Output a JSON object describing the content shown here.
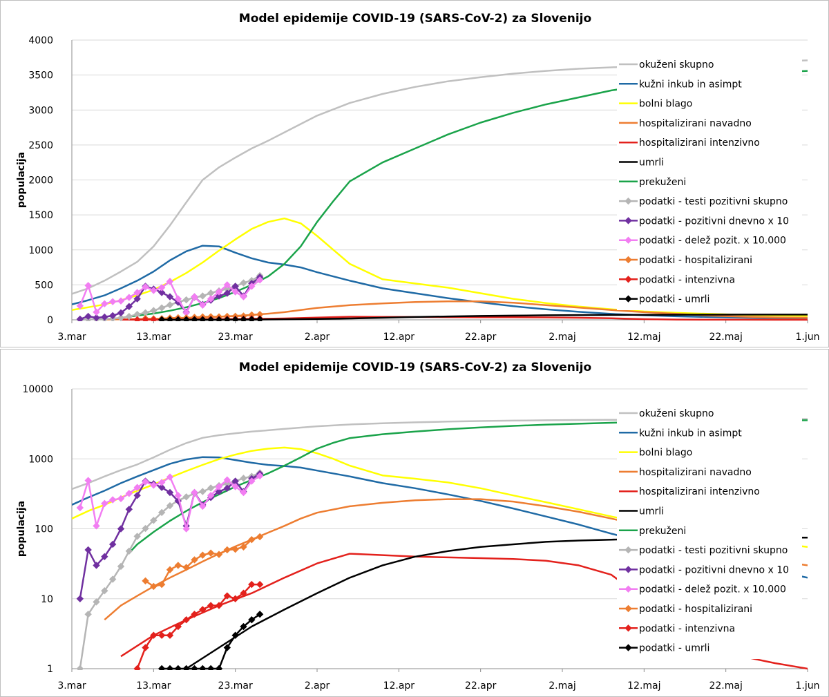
{
  "chart_data": [
    {
      "type": "line",
      "title": "Model epidemije COVID-19 (SARS-CoV-2) za Slovenijo",
      "ylabel": "populacija",
      "xlabel": "",
      "yscale": "linear",
      "ylim": [
        0,
        4000
      ],
      "yticks": [
        "0",
        "500",
        "1000",
        "1500",
        "2000",
        "2500",
        "3000",
        "3500",
        "4000"
      ],
      "ytick_values": [
        0,
        500,
        1000,
        1500,
        2000,
        2500,
        3000,
        3500,
        4000
      ],
      "xlim": [
        0,
        90
      ],
      "xticks": [
        "3.mar",
        "13.mar",
        "23.mar",
        "2.apr",
        "12.apr",
        "22.apr",
        "2.maj",
        "12.maj",
        "22.maj",
        "1.jun"
      ],
      "xtick_days": [
        0,
        10,
        20,
        30,
        40,
        50,
        60,
        70,
        80,
        90
      ],
      "grid": "horizontal",
      "legend_position": "right",
      "series": [
        {
          "name": "okuženi skupno",
          "color": "#c0c0c0",
          "marker": "none",
          "x": [
            0,
            2,
            4,
            6,
            8,
            10,
            12,
            14,
            16,
            18,
            20,
            22,
            24,
            26,
            28,
            30,
            34,
            38,
            42,
            46,
            50,
            54,
            58,
            62,
            66,
            70,
            74,
            78,
            82,
            86,
            90
          ],
          "y": [
            370,
            450,
            560,
            690,
            830,
            1050,
            1350,
            1680,
            2000,
            2180,
            2320,
            2450,
            2560,
            2680,
            2800,
            2920,
            3100,
            3230,
            3330,
            3410,
            3470,
            3520,
            3560,
            3590,
            3610,
            3630,
            3650,
            3670,
            3680,
            3695,
            3710
          ]
        },
        {
          "name": "kužni inkub in asimpt",
          "color": "#1f6aa5",
          "marker": "none",
          "x": [
            0,
            2,
            4,
            6,
            8,
            10,
            12,
            14,
            16,
            18,
            20,
            22,
            24,
            26,
            28,
            30,
            34,
            38,
            42,
            46,
            50,
            54,
            58,
            62,
            66,
            70,
            74,
            78,
            82,
            86,
            90
          ],
          "y": [
            220,
            280,
            350,
            450,
            560,
            690,
            850,
            980,
            1060,
            1050,
            960,
            880,
            820,
            790,
            750,
            680,
            560,
            450,
            380,
            310,
            250,
            195,
            150,
            115,
            85,
            65,
            50,
            40,
            32,
            25,
            20
          ]
        },
        {
          "name": "bolni blago",
          "color": "#ffff00",
          "marker": "none",
          "x": [
            0,
            2,
            4,
            6,
            8,
            10,
            12,
            14,
            16,
            18,
            20,
            22,
            24,
            26,
            28,
            30,
            32,
            34,
            38,
            42,
            46,
            50,
            54,
            58,
            62,
            66,
            70,
            74,
            78,
            82,
            86,
            90
          ],
          "y": [
            140,
            180,
            220,
            280,
            350,
            430,
            540,
            670,
            820,
            990,
            1150,
            1300,
            1400,
            1450,
            1380,
            1200,
            1000,
            800,
            580,
            520,
            460,
            380,
            300,
            240,
            190,
            150,
            120,
            100,
            85,
            72,
            62,
            55
          ]
        },
        {
          "name": "hospitalizirani navadno",
          "color": "#ed7d31",
          "marker": "none",
          "x": [
            4,
            6,
            8,
            10,
            12,
            14,
            16,
            18,
            20,
            22,
            24,
            26,
            28,
            30,
            34,
            38,
            42,
            46,
            50,
            54,
            58,
            62,
            66,
            70,
            74,
            78,
            82,
            86,
            90
          ],
          "y": [
            5,
            8,
            11,
            15,
            20,
            26,
            34,
            44,
            56,
            70,
            88,
            110,
            140,
            170,
            210,
            235,
            255,
            265,
            265,
            245,
            210,
            175,
            140,
            110,
            85,
            60,
            45,
            35,
            30
          ]
        },
        {
          "name": "hospitalizirani intenzivno",
          "color": "#e3211c",
          "marker": "none",
          "x": [
            6,
            10,
            14,
            18,
            22,
            26,
            30,
            34,
            38,
            42,
            46,
            50,
            54,
            58,
            62,
            66,
            70,
            74,
            78,
            82,
            86,
            90
          ],
          "y": [
            1.5,
            3,
            5,
            8,
            12,
            20,
            32,
            44,
            42,
            40,
            39,
            38,
            37,
            35,
            30,
            22,
            10,
            4,
            2,
            1.5,
            1.2,
            1
          ]
        },
        {
          "name": "umrli",
          "color": "#000000",
          "marker": "none",
          "x": [
            10,
            14,
            18,
            22,
            26,
            30,
            34,
            38,
            42,
            46,
            50,
            54,
            58,
            62,
            66,
            70,
            74,
            78,
            82,
            86,
            90
          ],
          "y": [
            0.5,
            1,
            2,
            4,
            7,
            12,
            20,
            30,
            40,
            48,
            55,
            60,
            65,
            68,
            70,
            72,
            73,
            74,
            75,
            75,
            75
          ]
        },
        {
          "name": "prekuženi",
          "color": "#1aa34a",
          "marker": "none",
          "x": [
            7,
            8,
            10,
            12,
            14,
            16,
            18,
            20,
            22,
            24,
            26,
            28,
            30,
            32,
            34,
            38,
            42,
            46,
            50,
            54,
            58,
            62,
            66,
            70,
            74,
            78,
            82,
            86,
            90
          ],
          "y": [
            45,
            60,
            90,
            130,
            180,
            240,
            310,
            400,
            500,
            620,
            800,
            1050,
            1400,
            1700,
            1980,
            2250,
            2450,
            2650,
            2820,
            2960,
            3080,
            3180,
            3280,
            3350,
            3420,
            3470,
            3510,
            3540,
            3560
          ]
        },
        {
          "name": "podatki - testi pozitivni skupno",
          "color": "#b5b5b5",
          "marker": "diamond",
          "x": [
            1,
            2,
            3,
            4,
            5,
            6,
            7,
            8,
            9,
            10,
            11,
            12,
            13,
            14,
            15,
            16,
            17,
            18,
            19,
            20,
            21,
            22,
            23
          ],
          "y": [
            1,
            6,
            9,
            13,
            19,
            29,
            48,
            78,
            101,
            132,
            171,
            214,
            253,
            286,
            319,
            341,
            383,
            414,
            442,
            480,
            528,
            562,
            632
          ]
        },
        {
          "name": "podatki - pozitivni dnevno x 10",
          "color": "#7030a0",
          "marker": "diamond",
          "x": [
            1,
            2,
            3,
            4,
            5,
            6,
            7,
            8,
            9,
            10,
            11,
            12,
            13,
            14,
            15,
            16,
            17,
            18,
            19,
            20,
            21,
            22,
            23
          ],
          "y": [
            10,
            50,
            30,
            40,
            60,
            100,
            190,
            300,
            480,
            440,
            390,
            330,
            250,
            110,
            330,
            220,
            280,
            340,
            380,
            480,
            340,
            520,
            610
          ]
        },
        {
          "name": "podatki - delež pozit. x 10.000",
          "color": "#f27ef2",
          "marker": "diamond",
          "x": [
            1,
            2,
            3,
            4,
            5,
            6,
            7,
            8,
            9,
            10,
            11,
            12,
            13,
            14,
            15,
            16,
            17,
            18,
            19,
            20,
            21,
            22,
            23
          ],
          "y": [
            200,
            490,
            110,
            230,
            260,
            270,
            320,
            390,
            470,
            420,
            460,
            550,
            300,
            100,
            330,
            210,
            300,
            400,
            500,
            400,
            330,
            480,
            570
          ]
        },
        {
          "name": "podatki - hospitalizirani",
          "color": "#ed7d31",
          "marker": "diamond",
          "x": [
            9,
            10,
            11,
            12,
            13,
            14,
            15,
            16,
            17,
            18,
            19,
            20,
            21,
            22,
            23
          ],
          "y": [
            18,
            15,
            16,
            26,
            30,
            28,
            36,
            42,
            45,
            43,
            50,
            51,
            55,
            70,
            77
          ]
        },
        {
          "name": "podatki - intenzivna",
          "color": "#e3211c",
          "marker": "diamond",
          "x": [
            8,
            9,
            10,
            11,
            12,
            13,
            14,
            15,
            16,
            17,
            18,
            19,
            20,
            21,
            22,
            23
          ],
          "y": [
            1,
            2,
            3,
            3,
            3,
            4,
            5,
            6,
            7,
            8,
            8,
            11,
            10,
            12,
            16,
            16
          ]
        },
        {
          "name": "podatki - umrli",
          "color": "#000000",
          "marker": "diamond",
          "x": [
            11,
            12,
            13,
            14,
            15,
            16,
            17,
            18,
            19,
            20,
            21,
            22,
            23
          ],
          "y": [
            1,
            1,
            1,
            1,
            1,
            1,
            1,
            1,
            2,
            3,
            4,
            5,
            6
          ]
        }
      ]
    },
    {
      "type": "line",
      "title": "Model epidemije COVID-19 (SARS-CoV-2) za Slovenijo",
      "ylabel": "populacija",
      "xlabel": "",
      "yscale": "log",
      "ylim": [
        1,
        10000
      ],
      "yticks": [
        "1",
        "10",
        "100",
        "1000",
        "10000"
      ],
      "ytick_values": [
        1,
        10,
        100,
        1000,
        10000
      ],
      "xlim": [
        0,
        90
      ],
      "xticks": [
        "3.mar",
        "13.mar",
        "23.mar",
        "2.apr",
        "12.apr",
        "22.apr",
        "2.maj",
        "12.maj",
        "22.maj",
        "1.jun"
      ],
      "xtick_days": [
        0,
        10,
        20,
        30,
        40,
        50,
        60,
        70,
        80,
        90
      ],
      "grid": "horizontal",
      "legend_position": "right",
      "series_ref": "same as linear panel"
    }
  ],
  "legend": [
    {
      "label": "okuženi skupno",
      "color": "#c0c0c0",
      "marker": false
    },
    {
      "label": "kužni inkub in asimpt",
      "color": "#1f6aa5",
      "marker": false
    },
    {
      "label": "bolni blago",
      "color": "#ffff00",
      "marker": false
    },
    {
      "label": "hospitalizirani navadno",
      "color": "#ed7d31",
      "marker": false
    },
    {
      "label": "hospitalizirani intenzivno",
      "color": "#e3211c",
      "marker": false
    },
    {
      "label": "umrli",
      "color": "#000000",
      "marker": false
    },
    {
      "label": "prekuženi",
      "color": "#1aa34a",
      "marker": false
    },
    {
      "label": "podatki - testi pozitivni skupno",
      "color": "#b5b5b5",
      "marker": true
    },
    {
      "label": "podatki - pozitivni dnevno x 10",
      "color": "#7030a0",
      "marker": true
    },
    {
      "label": "podatki - delež pozit. x 10.000",
      "color": "#f27ef2",
      "marker": true
    },
    {
      "label": "podatki - hospitalizirani",
      "color": "#ed7d31",
      "marker": true
    },
    {
      "label": "podatki - intenzivna",
      "color": "#e3211c",
      "marker": true
    },
    {
      "label": "podatki - umrli",
      "color": "#000000",
      "marker": true
    }
  ]
}
